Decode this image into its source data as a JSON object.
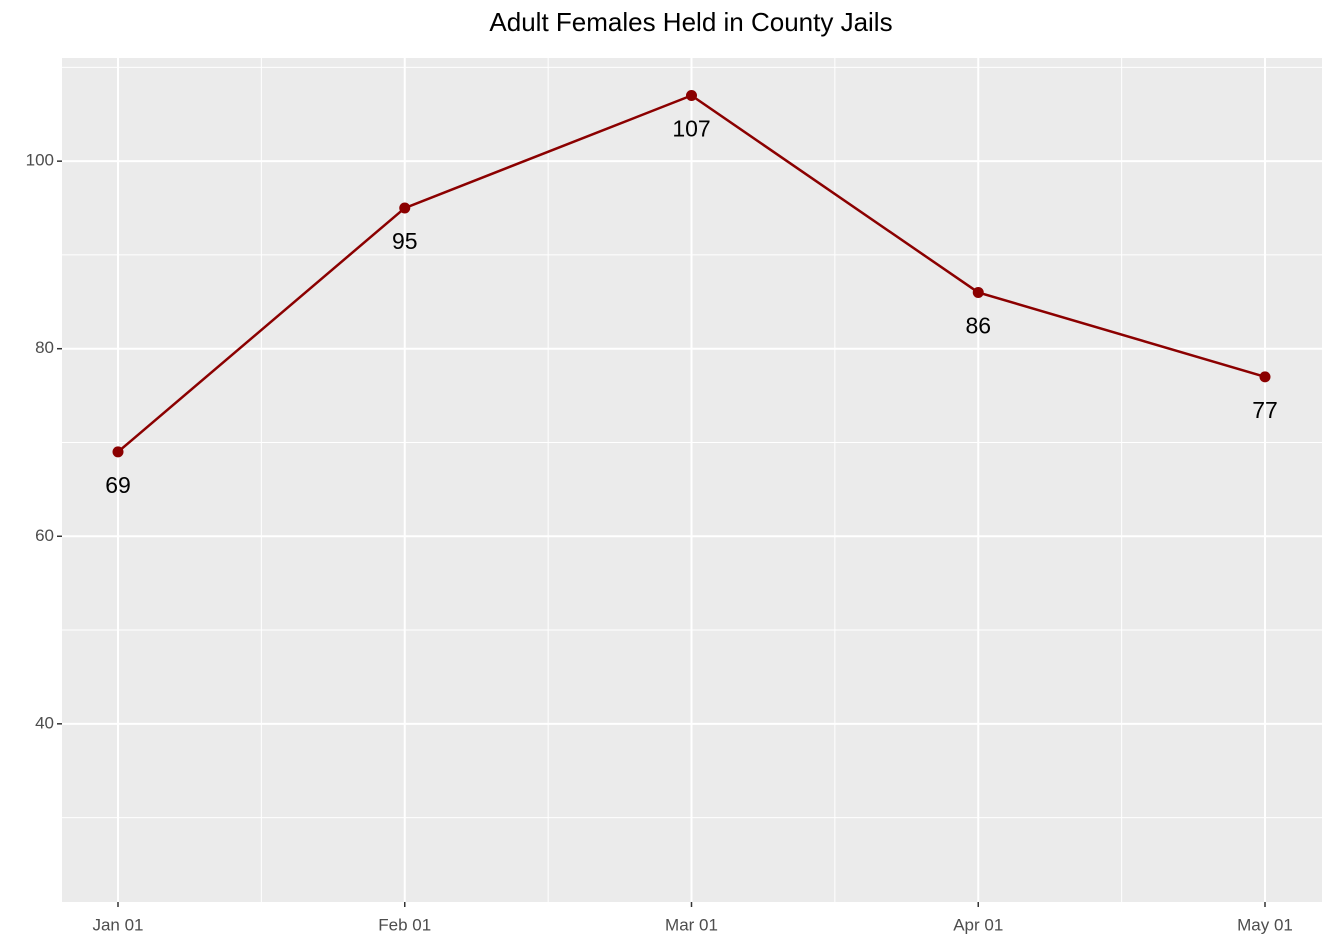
{
  "chart_data": {
    "type": "line",
    "title": "Adult Females Held in County Jails",
    "categories": [
      "Jan 01",
      "Feb 01",
      "Mar 01",
      "Apr 01",
      "May 01"
    ],
    "series": [
      {
        "name": "Adult Females",
        "color": "#8B0000",
        "values": [
          69,
          95,
          107,
          86,
          77
        ]
      }
    ],
    "ylim": [
      21,
      111
    ],
    "yticks": [
      40,
      60,
      80,
      100
    ],
    "grid": true
  }
}
